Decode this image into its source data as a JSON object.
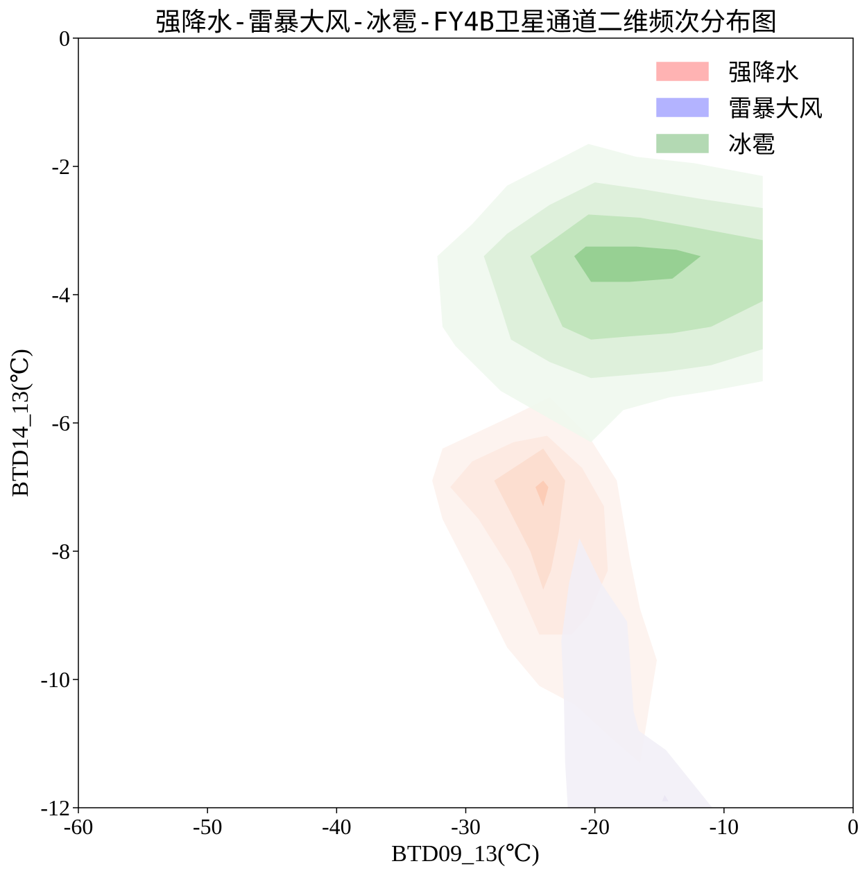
{
  "chart_data": {
    "type": "contour",
    "title": "强降水-雷暴大风-冰雹-FY4B卫星通道二维频次分布图",
    "xlabel": "BTD09_13(℃)",
    "ylabel": "BTD14_13(℃)",
    "xlim": [
      -60,
      0
    ],
    "ylim": [
      -12,
      0
    ],
    "xticks": [
      -60,
      -50,
      -40,
      -30,
      -20,
      -10,
      0
    ],
    "yticks": [
      0,
      -2,
      -4,
      -6,
      -8,
      -10,
      -12
    ],
    "xtick_labels": [
      "-60",
      "-50",
      "-40",
      "-30",
      "-20",
      "-10",
      "0"
    ],
    "ytick_labels": [
      "0",
      "-2",
      "-4",
      "-6",
      "-8",
      "-10",
      "-12"
    ],
    "grid": false,
    "legend_position": "top-right",
    "series": [
      {
        "name": "强降水",
        "legend_color": "#ffb3b3",
        "level_colors": [
          "#fdf1ec",
          "#fde8df",
          "#fcdccd",
          "#fbc9b2"
        ],
        "levels": [
          [
            [
              -26.5,
              -5.9
            ],
            [
              -23.5,
              -5.6
            ],
            [
              -20.5,
              -6.2
            ],
            [
              -18.3,
              -6.9
            ],
            [
              -17.3,
              -8.1
            ],
            [
              -16.5,
              -8.9
            ],
            [
              -15.2,
              -9.7
            ],
            [
              -16.5,
              -11.3
            ],
            [
              -18.8,
              -10.9
            ],
            [
              -21.5,
              -10.4
            ],
            [
              -24.3,
              -10.1
            ],
            [
              -26.8,
              -9.5
            ],
            [
              -29.5,
              -8.4
            ],
            [
              -31.8,
              -7.5
            ],
            [
              -32.6,
              -6.9
            ],
            [
              -31.8,
              -6.4
            ]
          ],
          [
            [
              -26.3,
              -6.3
            ],
            [
              -23.7,
              -6.2
            ],
            [
              -21.0,
              -6.7
            ],
            [
              -19.3,
              -7.3
            ],
            [
              -19.0,
              -8.3
            ],
            [
              -20.5,
              -9.0
            ],
            [
              -21.8,
              -9.3
            ],
            [
              -24.3,
              -9.3
            ],
            [
              -26.5,
              -8.3
            ],
            [
              -29.0,
              -7.5
            ],
            [
              -31.2,
              -7.0
            ],
            [
              -29.5,
              -6.6
            ]
          ],
          [
            [
              -24.0,
              -6.4
            ],
            [
              -22.3,
              -6.9
            ],
            [
              -22.8,
              -7.7
            ],
            [
              -23.4,
              -8.3
            ],
            [
              -24.0,
              -8.6
            ],
            [
              -25.0,
              -8.0
            ],
            [
              -27.8,
              -6.9
            ]
          ],
          [
            [
              -24.0,
              -6.9
            ],
            [
              -23.6,
              -7.0
            ],
            [
              -24.0,
              -7.3
            ],
            [
              -24.6,
              -7.0
            ]
          ]
        ]
      },
      {
        "name": "雷暴大风",
        "legend_color": "#b3b3ff",
        "level_colors": [
          "#f1eef7",
          "#e9e5f3"
        ],
        "levels": [
          [
            [
              -21.2,
              -7.8
            ],
            [
              -19.5,
              -8.5
            ],
            [
              -17.5,
              -9.1
            ],
            [
              -17.0,
              -10.5
            ],
            [
              -16.6,
              -10.8
            ],
            [
              -14.5,
              -11.1
            ],
            [
              -10.9,
              -12.0
            ],
            [
              -22.1,
              -12.0
            ],
            [
              -22.3,
              -11.3
            ],
            [
              -22.4,
              -10.3
            ],
            [
              -22.6,
              -9.4
            ],
            [
              -22.0,
              -8.5
            ]
          ],
          [
            [
              -14.8,
              -11.9
            ],
            [
              -14.3,
              -11.9
            ],
            [
              -14.6,
              -11.8
            ]
          ]
        ]
      },
      {
        "name": "冰雹",
        "legend_color": "#b3d9b3",
        "level_colors": [
          "#eff8ed",
          "#daefd7",
          "#bde3b7",
          "#8fcc8c"
        ],
        "levels": [
          [
            [
              -20.5,
              -1.65
            ],
            [
              -16.8,
              -1.85
            ],
            [
              -12.3,
              -1.95
            ],
            [
              -7.0,
              -2.15
            ],
            [
              -7.0,
              -5.35
            ],
            [
              -11.0,
              -5.5
            ],
            [
              -14.2,
              -5.6
            ],
            [
              -17.8,
              -5.8
            ],
            [
              -20.3,
              -6.3
            ],
            [
              -23.8,
              -5.9
            ],
            [
              -27.3,
              -5.5
            ],
            [
              -30.8,
              -4.8
            ],
            [
              -31.8,
              -4.5
            ],
            [
              -32.2,
              -3.4
            ],
            [
              -29.5,
              -2.9
            ],
            [
              -26.8,
              -2.3
            ]
          ],
          [
            [
              -20.0,
              -2.25
            ],
            [
              -16.5,
              -2.35
            ],
            [
              -12.0,
              -2.5
            ],
            [
              -7.0,
              -2.65
            ],
            [
              -7.0,
              -4.85
            ],
            [
              -11.0,
              -5.1
            ],
            [
              -14.5,
              -5.2
            ],
            [
              -17.3,
              -5.25
            ],
            [
              -20.3,
              -5.3
            ],
            [
              -23.5,
              -5.05
            ],
            [
              -26.5,
              -4.7
            ],
            [
              -27.6,
              -4.0
            ],
            [
              -28.6,
              -3.4
            ],
            [
              -26.8,
              -3.05
            ],
            [
              -23.5,
              -2.6
            ]
          ],
          [
            [
              -20.5,
              -2.75
            ],
            [
              -16.5,
              -2.8
            ],
            [
              -12.3,
              -2.95
            ],
            [
              -7.0,
              -3.15
            ],
            [
              -7.0,
              -4.1
            ],
            [
              -11.0,
              -4.5
            ],
            [
              -14.0,
              -4.6
            ],
            [
              -17.3,
              -4.65
            ],
            [
              -20.3,
              -4.7
            ],
            [
              -22.5,
              -4.5
            ],
            [
              -25.0,
              -3.4
            ]
          ],
          [
            [
              -20.7,
              -3.25
            ],
            [
              -16.8,
              -3.25
            ],
            [
              -13.7,
              -3.3
            ],
            [
              -11.8,
              -3.4
            ],
            [
              -14.0,
              -3.75
            ],
            [
              -17.3,
              -3.8
            ],
            [
              -20.3,
              -3.8
            ],
            [
              -21.6,
              -3.4
            ]
          ]
        ]
      }
    ]
  }
}
